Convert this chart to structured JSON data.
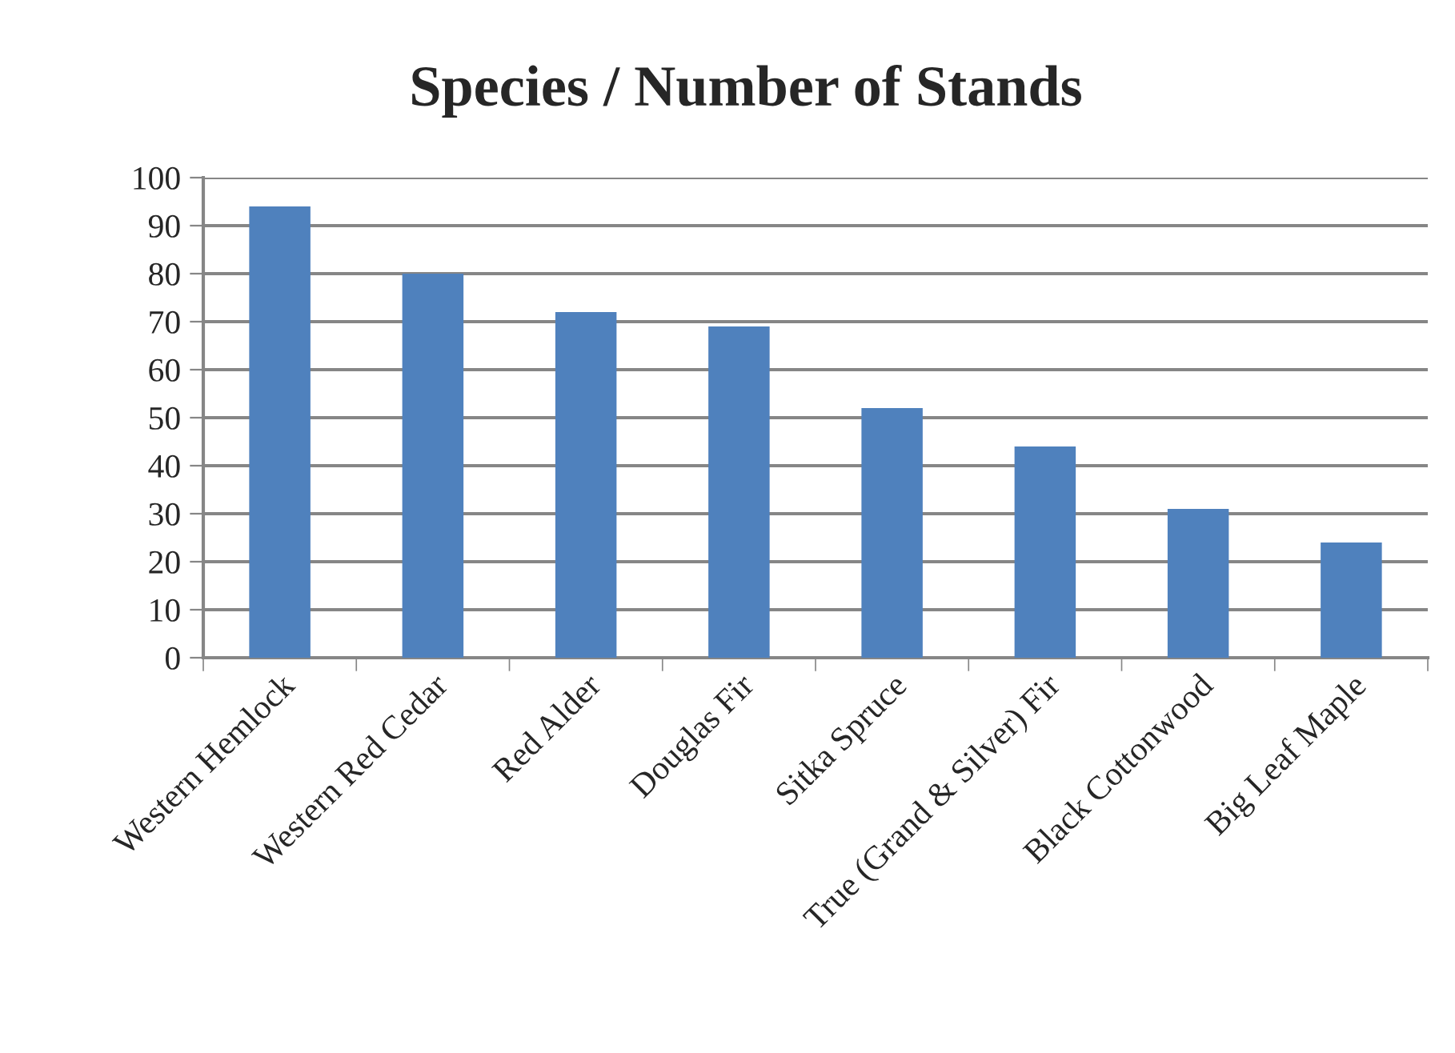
{
  "chart_data": {
    "type": "bar",
    "title": "Species / Number of Stands",
    "categories": [
      "Western Hemlock",
      "Western Red Cedar",
      "Red Alder",
      "Douglas Fir",
      "Sitka Spruce",
      "True (Grand & Silver) Fir",
      "Black Cottonwood",
      "Big Leaf Maple"
    ],
    "values": [
      94,
      80,
      72,
      69,
      52,
      44,
      31,
      24
    ],
    "color": "#4f81bd",
    "ylim": [
      0,
      100
    ],
    "yticks": [
      0,
      10,
      20,
      30,
      40,
      50,
      60,
      70,
      80,
      90,
      100
    ],
    "grid": "y"
  }
}
